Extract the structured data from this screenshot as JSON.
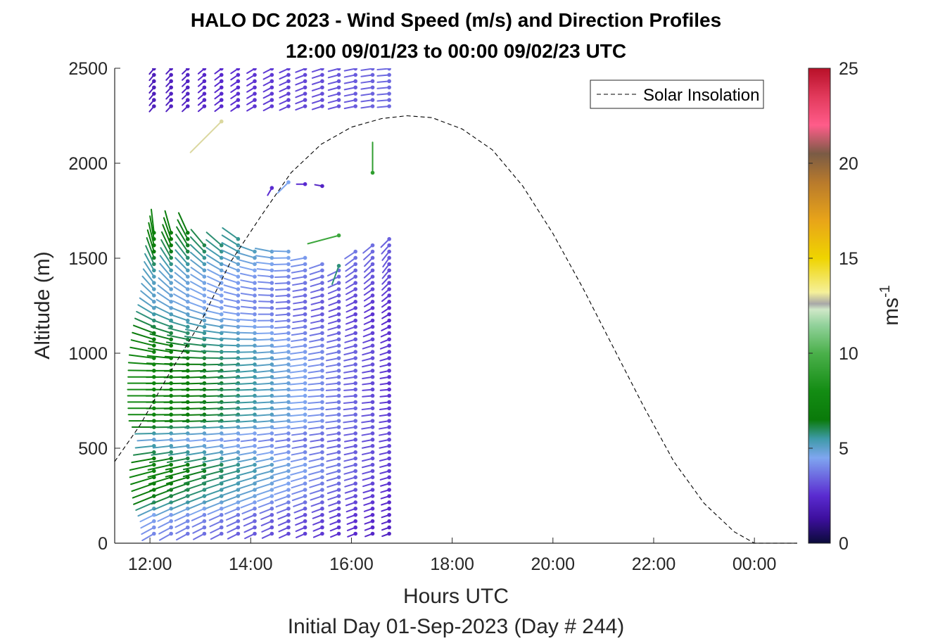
{
  "chart_data": {
    "type": "wind barb profile",
    "title": "HALO DC 2023 - Wind Speed (m/s) and Direction Profiles",
    "subtitle": "12:00 09/01/23 to 00:00 09/02/23  UTC",
    "xlabel": "Hours UTC",
    "xlabel_secondary": "Initial Day 01-Sep-2023 (Day # 244)",
    "ylabel": "Altitude (m)",
    "xlim_hours": [
      11.3,
      24.85
    ],
    "ylim": [
      0,
      2500
    ],
    "x_ticks": [
      12,
      14,
      16,
      18,
      20,
      22,
      24
    ],
    "x_tick_labels": [
      "12:00",
      "14:00",
      "16:00",
      "18:00",
      "20:00",
      "22:00",
      "00:00"
    ],
    "y_ticks": [
      0,
      500,
      1000,
      1500,
      2000,
      2500
    ],
    "y_tick_labels": [
      "0",
      "500",
      "1000",
      "1500",
      "2000",
      "2500"
    ],
    "colorbar": {
      "label": "ms",
      "label_exponent": "-1",
      "range": [
        0,
        25
      ],
      "ticks": [
        0,
        5,
        10,
        15,
        20,
        25
      ],
      "tick_labels": [
        "0",
        "5",
        "10",
        "15",
        "20",
        "25"
      ],
      "colors": [
        {
          "v": 0,
          "c": "#0b0b3a"
        },
        {
          "v": 1.3,
          "c": "#3d0f9e"
        },
        {
          "v": 2.5,
          "c": "#5a2bd0"
        },
        {
          "v": 4.5,
          "c": "#7fa6f0"
        },
        {
          "v": 5.5,
          "c": "#3e9aa8"
        },
        {
          "v": 6.5,
          "c": "#0a7a0a"
        },
        {
          "v": 8,
          "c": "#138c13"
        },
        {
          "v": 10,
          "c": "#4bb04b"
        },
        {
          "v": 11.5,
          "c": "#93d29c"
        },
        {
          "v": 12.3,
          "c": "#cfe8c7"
        },
        {
          "v": 12.6,
          "c": "#a8a8a8"
        },
        {
          "v": 13.2,
          "c": "#f5f09a"
        },
        {
          "v": 15,
          "c": "#efd400"
        },
        {
          "v": 17,
          "c": "#e8a419"
        },
        {
          "v": 19,
          "c": "#b87a2c"
        },
        {
          "v": 20.5,
          "c": "#7a5b45"
        },
        {
          "v": 22,
          "c": "#ff5c8a"
        },
        {
          "v": 23.5,
          "c": "#e23a5c"
        },
        {
          "v": 25,
          "c": "#b81028"
        }
      ]
    },
    "legend": {
      "entries": [
        "Solar Insolation"
      ],
      "placement": "top-right"
    },
    "solar_insolation": {
      "style": "dashed",
      "color": "#000000",
      "points": [
        [
          11.3,
          430
        ],
        [
          11.8,
          620
        ],
        [
          12.4,
          900
        ],
        [
          13.0,
          1160
        ],
        [
          13.6,
          1480
        ],
        [
          14.2,
          1720
        ],
        [
          14.8,
          1950
        ],
        [
          15.4,
          2100
        ],
        [
          16.0,
          2190
        ],
        [
          16.6,
          2235
        ],
        [
          17.1,
          2250
        ],
        [
          17.6,
          2240
        ],
        [
          18.2,
          2180
        ],
        [
          18.8,
          2070
        ],
        [
          19.4,
          1880
        ],
        [
          20.0,
          1630
        ],
        [
          20.6,
          1340
        ],
        [
          21.2,
          1030
        ],
        [
          21.8,
          720
        ],
        [
          22.4,
          430
        ],
        [
          23.0,
          210
        ],
        [
          23.6,
          60
        ],
        [
          24.0,
          0
        ],
        [
          24.85,
          0
        ]
      ]
    },
    "wind_barbs": {
      "station_hours": [
        12.08,
        12.42,
        12.75,
        13.08,
        13.42,
        13.75,
        14.08,
        14.42,
        14.75,
        15.08,
        15.42,
        15.75,
        16.08,
        16.42,
        16.75
      ],
      "lower_profile_altitude_range": [
        50,
        1650
      ],
      "lower_profile_top_altitude": [
        1640,
        1650,
        1650,
        1600,
        1580,
        1620,
        1560,
        1540,
        1540,
        1520,
        1500,
        1460,
        1560,
        1600,
        1620
      ],
      "lower_profile_altitude_step": 33,
      "speed_profile_early": [
        [
          50,
          4
        ],
        [
          150,
          4.5
        ],
        [
          250,
          6.5
        ],
        [
          400,
          7.5
        ],
        [
          550,
          4.8
        ],
        [
          650,
          7.5
        ],
        [
          800,
          7.8
        ],
        [
          950,
          7.5
        ],
        [
          1100,
          6.5
        ],
        [
          1250,
          5
        ],
        [
          1400,
          5.2
        ],
        [
          1550,
          6.8
        ],
        [
          1650,
          7
        ]
      ],
      "speed_profile_late": [
        [
          50,
          2.2
        ],
        [
          200,
          2.4
        ],
        [
          400,
          2.8
        ],
        [
          600,
          3
        ],
        [
          800,
          2.6
        ],
        [
          1000,
          2.8
        ],
        [
          1200,
          2.4
        ],
        [
          1400,
          3
        ],
        [
          1650,
          3.5
        ]
      ],
      "direction_deg_early": [
        [
          50,
          240
        ],
        [
          300,
          250
        ],
        [
          600,
          270
        ],
        [
          900,
          270
        ],
        [
          1200,
          300
        ],
        [
          1500,
          340
        ],
        [
          1650,
          355
        ]
      ],
      "direction_deg_late": [
        [
          50,
          250
        ],
        [
          400,
          255
        ],
        [
          800,
          265
        ],
        [
          1200,
          240
        ],
        [
          1500,
          215
        ],
        [
          1650,
          230
        ]
      ],
      "upper_profile_altitude_range": [
        2300,
        2500
      ],
      "upper_profile_altitude_step": 33,
      "upper_profile_speed_range": [
        2,
        3.5
      ],
      "isolated_barbs": [
        {
          "hour": 13.42,
          "altitude": 2220,
          "speed": 13,
          "direction_deg": 225
        },
        {
          "hour": 14.42,
          "altitude": 1870,
          "speed": 2.5,
          "direction_deg": 210
        },
        {
          "hour": 14.75,
          "altitude": 1900,
          "speed": 4.5,
          "direction_deg": 225
        },
        {
          "hour": 15.08,
          "altitude": 1890,
          "speed": 2.5,
          "direction_deg": 270
        },
        {
          "hour": 15.42,
          "altitude": 1880,
          "speed": 2.2,
          "direction_deg": 280
        },
        {
          "hour": 16.42,
          "altitude": 1950,
          "speed": 9,
          "direction_deg": 0
        },
        {
          "hour": 15.75,
          "altitude": 1620,
          "speed": 9.5,
          "direction_deg": 255
        },
        {
          "hour": 15.75,
          "altitude": 1460,
          "speed": 5.8,
          "direction_deg": 200
        }
      ]
    }
  }
}
